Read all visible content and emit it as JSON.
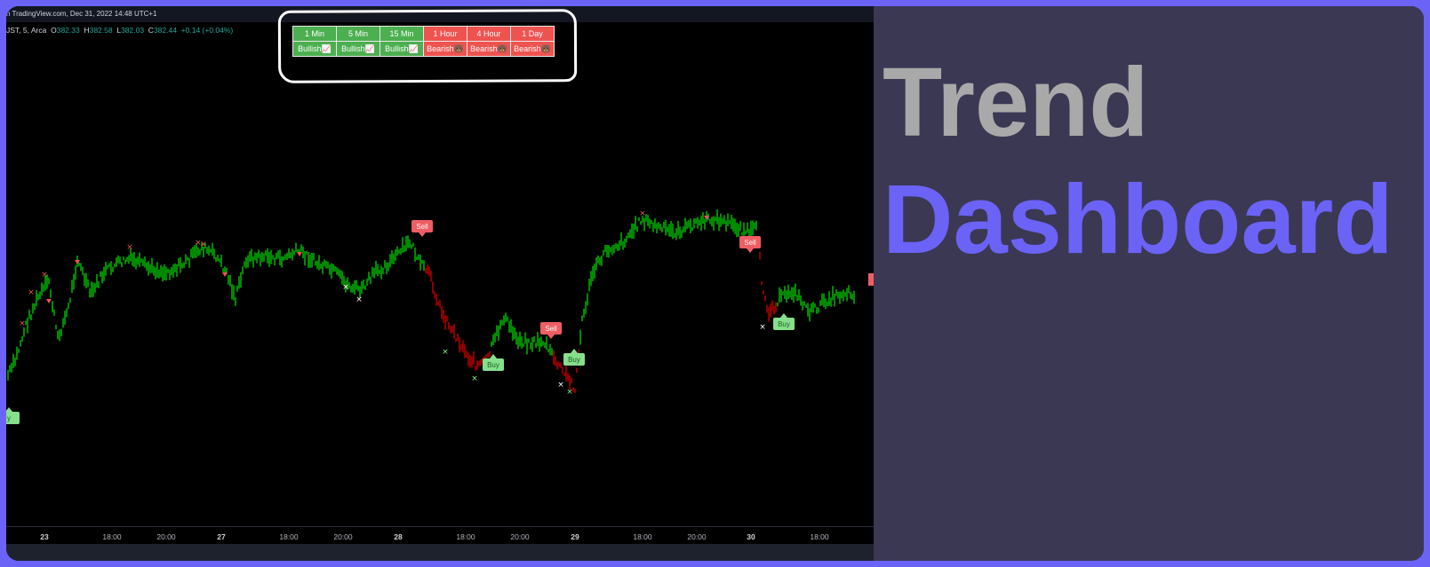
{
  "topbar": {
    "text": "n TradingView.com, Dec 31, 2022 14:48 UTC+1"
  },
  "ohlc": {
    "symbol": "JST, 5, Arca",
    "o_label": "O",
    "o": "382.33",
    "h_label": "H",
    "h": "382.58",
    "l_label": "L",
    "l": "382.03",
    "c_label": "C",
    "c": "382.44",
    "change": "+0.14 (+0.04%)"
  },
  "dashboard": {
    "headers": [
      "1 Min",
      "5 Min",
      "15 Min",
      "1 Hour",
      "4 Hour",
      "1 Day"
    ],
    "values": [
      "Bullish📈",
      "Bullish📈",
      "Bullish📈",
      "Bearish🐻",
      "Bearish🐻",
      "Bearish🐻"
    ],
    "states": [
      "bull",
      "bull",
      "bull",
      "bear",
      "bear",
      "bear"
    ]
  },
  "xaxis": [
    "23",
    "18:00",
    "20:00",
    "27",
    "18:00",
    "20:00",
    "28",
    "18:00",
    "20:00",
    "29",
    "18:00",
    "20:00",
    "30",
    "18:00"
  ],
  "signals": {
    "buy_label": "Buy",
    "sell_label": "Sell",
    "partial_buy": "y"
  },
  "colors": {
    "bull": "#4caf50",
    "bear": "#ef5350",
    "accent": "#6b63f6",
    "up_bar": "#00e600",
    "down_bar": "#e60000"
  },
  "banner": {
    "line1": "Trend",
    "line2": "Dashboard"
  }
}
